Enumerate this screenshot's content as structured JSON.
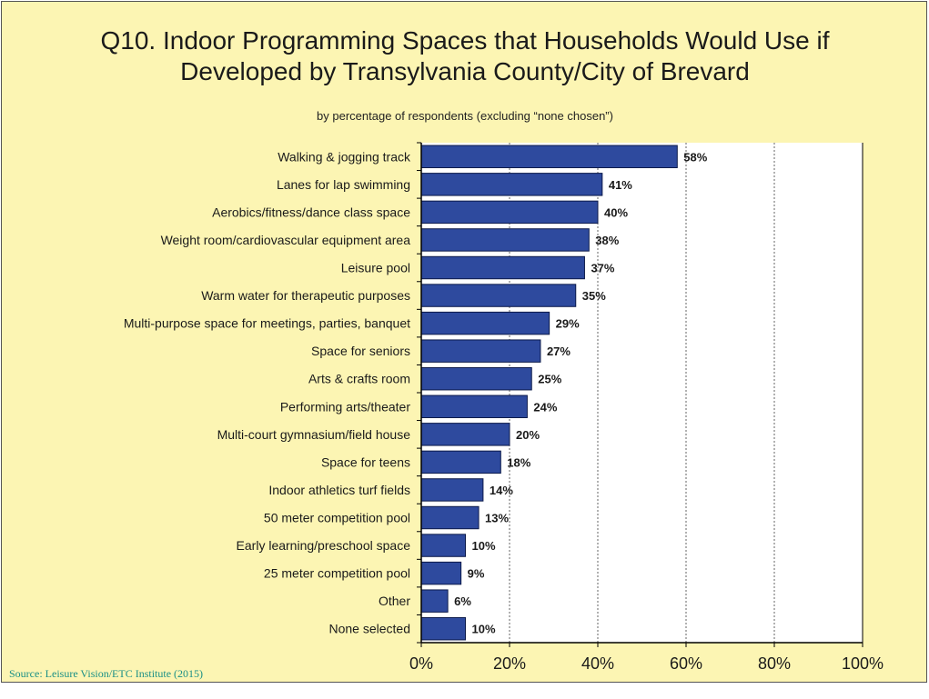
{
  "title": "Q10. Indoor Programming Spaces that Households Would Use if\nDeveloped by Transylvania County/City of Brevard",
  "subtitle": "by percentage of respondents (excluding “none chosen”)",
  "source": "Source:  Leisure Vision/ETC Institute (2015)",
  "colors": {
    "bar": "#2e4a9e",
    "background": "#fcf5b3",
    "plot": "#ffffff"
  },
  "chart_data": {
    "type": "bar",
    "orientation": "horizontal",
    "categories": [
      "Walking & jogging track",
      "Lanes for lap swimming",
      "Aerobics/fitness/dance class space",
      "Weight room/cardiovascular equipment area",
      "Leisure pool",
      "Warm water for therapeutic purposes",
      "Multi-purpose space for meetings, parties, banquet",
      "Space for seniors",
      "Arts & crafts room",
      "Performing arts/theater",
      "Multi-court gymnasium/field house",
      "Space for teens",
      "Indoor athletics turf fields",
      "50 meter competition pool",
      "Early learning/preschool space",
      "25 meter competition pool",
      "Other",
      "None selected"
    ],
    "values": [
      58,
      41,
      40,
      38,
      37,
      35,
      29,
      27,
      25,
      24,
      20,
      18,
      14,
      13,
      10,
      9,
      6,
      10
    ],
    "value_labels": [
      "58%",
      "41%",
      "40%",
      "38%",
      "37%",
      "35%",
      "29%",
      "27%",
      "25%",
      "24%",
      "20%",
      "18%",
      "14%",
      "13%",
      "10%",
      "9%",
      "6%",
      "10%"
    ],
    "xlim": [
      0,
      100
    ],
    "xticks": [
      "0%",
      "20%",
      "40%",
      "60%",
      "80%",
      "100%"
    ],
    "grid": "vertical dashed"
  }
}
